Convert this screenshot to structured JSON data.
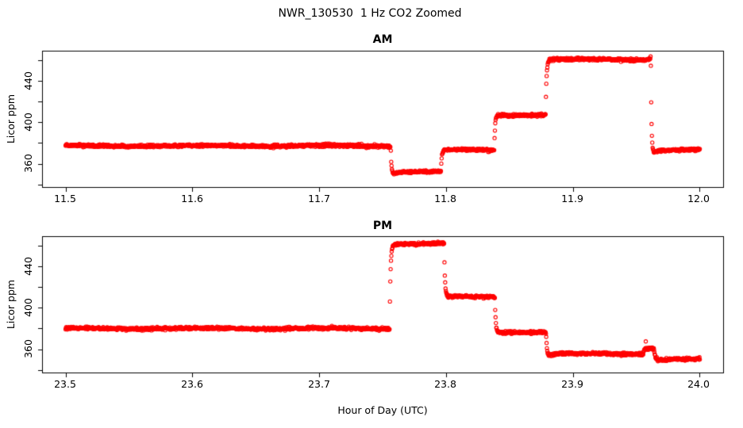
{
  "header": {
    "title": "NWR_130530  1 Hz CO2 Zoomed"
  },
  "chart_data": {
    "type": "scatter",
    "title": "NWR_130530  1 Hz CO2 Zoomed",
    "xlabel": "Hour of Day (UTC)",
    "ylabel": "Licor ppm",
    "legend": "none",
    "grid": false,
    "marker": {
      "shape": "open-circle",
      "color": "#FF0000",
      "radius_px": 2.1,
      "stroke_px": 1.1
    },
    "sample_rate_hz": 1,
    "noise_sigma_ppm": 0.65,
    "wobble": {
      "amplitude_ppm": 0.45,
      "period_s": 90
    },
    "ylim": [
      337.5,
      469.0
    ],
    "yticks": [
      340,
      360,
      380,
      400,
      420,
      440,
      460
    ],
    "ytick_labels": [
      "360",
      "400",
      "440"
    ],
    "ytick_label_values": [
      360,
      400,
      440
    ],
    "panels": [
      {
        "title": "AM",
        "xlim": [
          11.4815,
          12.0185
        ],
        "xticks": [
          11.5,
          11.6,
          11.7,
          11.8,
          11.9,
          12.0
        ],
        "xtick_labels": [
          "11.5",
          "11.6",
          "11.7",
          "11.8",
          "11.9",
          "12.0"
        ],
        "segments": [
          {
            "t0": 11.5,
            "t1": 11.7565,
            "level": 377.3,
            "tau": 0
          },
          {
            "t0": 11.7565,
            "t1": 11.796,
            "level": 352.3,
            "tau": 2.2,
            "kick": -5.0,
            "ktau": 9
          },
          {
            "t0": 11.796,
            "t1": 11.838,
            "level": 373.2,
            "tau": 2.2
          },
          {
            "t0": 11.838,
            "t1": 11.8785,
            "level": 407.0,
            "tau": 2.2
          },
          {
            "t0": 11.8785,
            "t1": 11.9615,
            "level": 460.5,
            "tau": 2.5,
            "end_kick": 2.5,
            "end_tau": 6
          },
          {
            "t0": 11.9615,
            "t1": 12.0003,
            "level": 373.2,
            "tau": 2.0,
            "kick": -9.0,
            "ktau": 7
          }
        ],
        "outliers": []
      },
      {
        "title": "PM",
        "xlim": [
          23.4815,
          24.0185
        ],
        "xticks": [
          23.5,
          23.6,
          23.7,
          23.8,
          23.9,
          24.0
        ],
        "xtick_labels": [
          "23.5",
          "23.6",
          "23.7",
          "23.8",
          "23.9",
          "24.0"
        ],
        "segments": [
          {
            "t0": 23.5,
            "t1": 23.7555,
            "level": 380.0,
            "tau": 0
          },
          {
            "t0": 23.7555,
            "t1": 23.7985,
            "level": 461.8,
            "tau": 2.5
          },
          {
            "t0": 23.7985,
            "t1": 23.8385,
            "level": 410.5,
            "tau": 2.2
          },
          {
            "t0": 23.8385,
            "t1": 23.879,
            "level": 376.5,
            "tau": 2.2
          },
          {
            "t0": 23.879,
            "t1": 23.9555,
            "level": 355.4,
            "tau": 2.2,
            "kick": -3.5,
            "ktau": 9
          },
          {
            "t0": 23.9555,
            "t1": 23.964,
            "level": 361.0,
            "tau": 1.5
          },
          {
            "t0": 23.964,
            "t1": 24.0003,
            "level": 350.3,
            "tau": 3.0
          }
        ],
        "outliers": [
          {
            "t": 23.9575,
            "v": 367.5
          }
        ]
      }
    ]
  }
}
